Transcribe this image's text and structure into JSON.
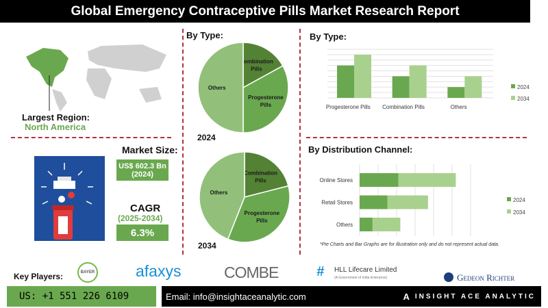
{
  "title": "Global Emergency Contraceptive Pills Market Research Report",
  "region": {
    "label": "Largest Region:",
    "value": "North America"
  },
  "market_size": {
    "label": "Market Size:",
    "value": "US$ 602.3 Bn",
    "year": "(2024)"
  },
  "cagr": {
    "label": "CAGR",
    "period": "(2025-2034)",
    "value": "6.3%"
  },
  "colors": {
    "dark": "#548235",
    "mid": "#6aa84f",
    "light": "#a9d18e",
    "pie_light": "#92c07a"
  },
  "chart_data": [
    {
      "type": "pie",
      "heading": "By Type:",
      "label": "2024",
      "slices": [
        {
          "name": "Combination Pills",
          "value": 17
        },
        {
          "name": "Progesterone Pills",
          "value": 33
        },
        {
          "name": "Others",
          "value": 50
        }
      ]
    },
    {
      "type": "pie",
      "label": "2034",
      "slices": [
        {
          "name": "Combination Pills",
          "value": 21
        },
        {
          "name": "Progesterone Pills",
          "value": 35
        },
        {
          "name": "Others",
          "value": 44
        }
      ]
    },
    {
      "type": "bar",
      "heading": "By Type:",
      "categories": [
        "Progesterone Pills",
        "Combination Pills",
        "Others"
      ],
      "series": [
        {
          "name": "2024",
          "values": [
            6,
            4,
            2
          ]
        },
        {
          "name": "2034",
          "values": [
            8,
            6,
            4
          ]
        }
      ],
      "ylim": [
        0,
        9
      ],
      "grid": true,
      "legend": "right"
    },
    {
      "type": "bar",
      "orientation": "horizontal-stacked",
      "heading": "By  Distribution Channel:",
      "categories": [
        "Online Stores",
        "Retail Stores",
        "Others"
      ],
      "series": [
        {
          "name": "2024",
          "values": [
            2.1,
            1.5,
            0.7
          ]
        },
        {
          "name": "2034",
          "values": [
            3.1,
            2.2,
            1.5
          ]
        }
      ],
      "xlim": [
        0,
        6
      ],
      "grid": true,
      "legend": "right"
    }
  ],
  "footnote": "*Pie Charts and Bar Graphs are for illustration only and do not represent actual data.",
  "key_players": {
    "label": "Key Players:",
    "logos": [
      "BAYER",
      "afaxys",
      "COMBE",
      "HLL Lifecare Limited",
      "Gedeon Richter"
    ],
    "hll_sub": "(A Government of India Enterprise)"
  },
  "footer": {
    "phone": "US: +1 551 226 6109",
    "email": "Email: info@insightaceanalytic.com",
    "brand": "INSIGHT ACE ANALYTIC"
  }
}
